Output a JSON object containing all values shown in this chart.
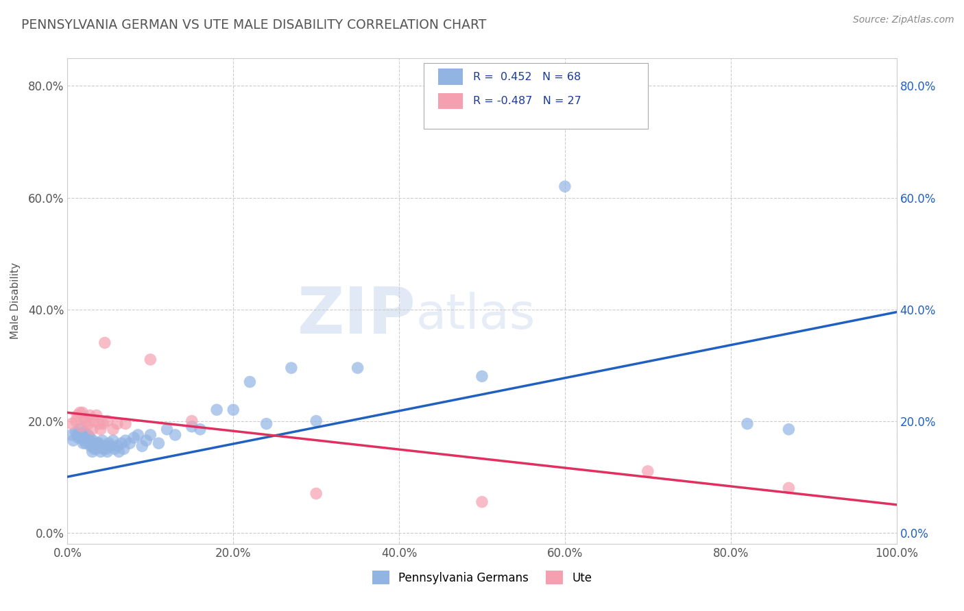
{
  "title": "PENNSYLVANIA GERMAN VS UTE MALE DISABILITY CORRELATION CHART",
  "source": "Source: ZipAtlas.com",
  "ylabel": "Male Disability",
  "xlabel": "",
  "xlim": [
    0.0,
    1.0
  ],
  "ylim": [
    -0.02,
    0.85
  ],
  "yticks": [
    0.0,
    0.2,
    0.4,
    0.6,
    0.8
  ],
  "ytick_labels": [
    "0.0%",
    "20.0%",
    "40.0%",
    "60.0%",
    "80.0%"
  ],
  "xticks": [
    0.0,
    0.2,
    0.4,
    0.6,
    0.8,
    1.0
  ],
  "xtick_labels": [
    "0.0%",
    "20.0%",
    "40.0%",
    "60.0%",
    "80.0%",
    "100.0%"
  ],
  "pa_german_color": "#92b4e3",
  "ute_color": "#f4a0b0",
  "pa_german_line_color": "#2060c0",
  "ute_line_color": "#e03060",
  "pa_german_R": 0.452,
  "pa_german_N": 68,
  "ute_R": -0.487,
  "ute_N": 27,
  "watermark_zip": "ZIP",
  "watermark_atlas": "atlas",
  "background_color": "#ffffff",
  "grid_color": "#cccccc",
  "title_color": "#555555",
  "pa_german_scatter_x": [
    0.005,
    0.007,
    0.01,
    0.012,
    0.013,
    0.015,
    0.015,
    0.017,
    0.018,
    0.019,
    0.02,
    0.02,
    0.022,
    0.022,
    0.023,
    0.025,
    0.025,
    0.026,
    0.027,
    0.028,
    0.03,
    0.03,
    0.031,
    0.032,
    0.033,
    0.035,
    0.036,
    0.037,
    0.038,
    0.04,
    0.04,
    0.042,
    0.043,
    0.045,
    0.047,
    0.048,
    0.05,
    0.052,
    0.055,
    0.057,
    0.06,
    0.062,
    0.065,
    0.068,
    0.07,
    0.075,
    0.08,
    0.085,
    0.09,
    0.095,
    0.1,
    0.11,
    0.12,
    0.13,
    0.15,
    0.16,
    0.18,
    0.2,
    0.22,
    0.24,
    0.27,
    0.3,
    0.35,
    0.5,
    0.6,
    0.68,
    0.82,
    0.87
  ],
  "pa_german_scatter_y": [
    0.175,
    0.165,
    0.18,
    0.175,
    0.17,
    0.175,
    0.185,
    0.17,
    0.175,
    0.16,
    0.18,
    0.165,
    0.16,
    0.17,
    0.175,
    0.165,
    0.175,
    0.165,
    0.17,
    0.155,
    0.145,
    0.16,
    0.165,
    0.15,
    0.155,
    0.15,
    0.16,
    0.155,
    0.16,
    0.145,
    0.155,
    0.165,
    0.15,
    0.155,
    0.15,
    0.145,
    0.16,
    0.155,
    0.165,
    0.15,
    0.155,
    0.145,
    0.16,
    0.15,
    0.165,
    0.16,
    0.17,
    0.175,
    0.155,
    0.165,
    0.175,
    0.16,
    0.185,
    0.175,
    0.19,
    0.185,
    0.22,
    0.22,
    0.27,
    0.195,
    0.295,
    0.2,
    0.295,
    0.28,
    0.62,
    0.755,
    0.195,
    0.185
  ],
  "ute_scatter_x": [
    0.005,
    0.01,
    0.012,
    0.015,
    0.017,
    0.018,
    0.02,
    0.022,
    0.025,
    0.027,
    0.03,
    0.032,
    0.035,
    0.038,
    0.04,
    0.043,
    0.045,
    0.048,
    0.055,
    0.06,
    0.07,
    0.1,
    0.15,
    0.3,
    0.5,
    0.7,
    0.87
  ],
  "ute_scatter_y": [
    0.195,
    0.2,
    0.21,
    0.215,
    0.19,
    0.215,
    0.205,
    0.2,
    0.195,
    0.21,
    0.185,
    0.2,
    0.21,
    0.195,
    0.185,
    0.195,
    0.34,
    0.2,
    0.185,
    0.195,
    0.195,
    0.31,
    0.2,
    0.07,
    0.055,
    0.11,
    0.08
  ]
}
